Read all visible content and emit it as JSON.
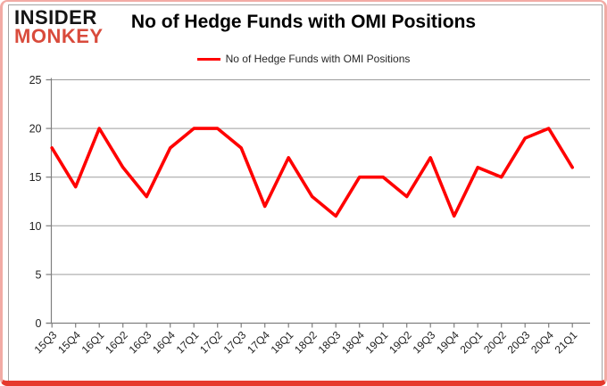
{
  "logo": {
    "line1": "INSIDER",
    "line2": "MONKEY",
    "monkey_color": "#d94b3c"
  },
  "header": {
    "title": "No of Hedge Funds with OMI Positions"
  },
  "legend": {
    "label": "No of Hedge Funds with OMI Positions",
    "swatch_color": "#ff0000"
  },
  "colors": {
    "line": "#ff0000",
    "gridline": "#9d9d9d",
    "axis": "#7f7f7f",
    "tick_label": "#1f1f1f",
    "border_pink": "#f2aba5",
    "border_red": "#e6392d"
  },
  "chart_data": {
    "type": "line",
    "title": "No of Hedge Funds with OMI Positions",
    "xlabel": "",
    "ylabel": "",
    "ylim": [
      0,
      25
    ],
    "yticks": [
      0,
      5,
      10,
      15,
      20,
      25
    ],
    "grid": true,
    "legend_position": "top-center",
    "categories": [
      "15Q3",
      "15Q4",
      "16Q1",
      "16Q2",
      "16Q3",
      "16Q4",
      "17Q1",
      "17Q2",
      "17Q3",
      "17Q4",
      "18Q1",
      "18Q2",
      "18Q3",
      "18Q4",
      "19Q1",
      "19Q2",
      "19Q3",
      "19Q4",
      "20Q1",
      "20Q2",
      "20Q3",
      "20Q4",
      "21Q1"
    ],
    "series": [
      {
        "name": "No of Hedge Funds with OMI Positions",
        "color": "#ff0000",
        "values": [
          18,
          14,
          20,
          16,
          13,
          18,
          20,
          20,
          18,
          12,
          17,
          13,
          11,
          15,
          15,
          13,
          17,
          11,
          16,
          15,
          19,
          20,
          16
        ]
      }
    ]
  }
}
